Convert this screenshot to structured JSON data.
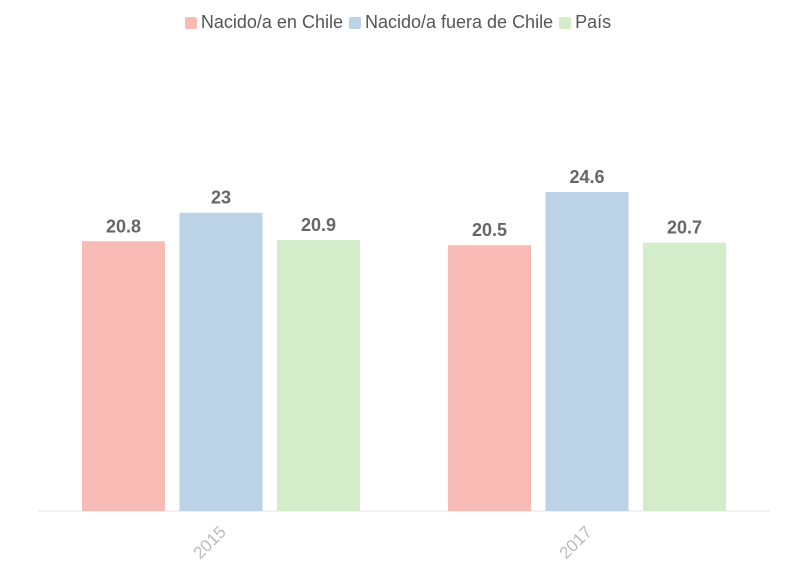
{
  "legend": {
    "items": [
      {
        "label": "Nacido/a en Chile",
        "color": "#f8bbb5"
      },
      {
        "label": "Nacido/a fuera de Chile",
        "color": "#bcd2e6"
      },
      {
        "label": "País",
        "color": "#d3edca"
      }
    ]
  },
  "chart_data": {
    "type": "bar",
    "categories": [
      "2015",
      "2017"
    ],
    "series": [
      {
        "name": "Nacido/a en Chile",
        "values": [
          20.8,
          20.5
        ],
        "color": "#f8bbb5"
      },
      {
        "name": "Nacido/a fuera de Chile",
        "values": [
          23,
          24.6
        ],
        "color": "#bcd2e6"
      },
      {
        "name": "País",
        "values": [
          20.9,
          20.7
        ],
        "color": "#d3edca"
      }
    ],
    "title": "",
    "xlabel": "",
    "ylabel": "",
    "ylim": [
      0,
      24.6
    ],
    "grid": false,
    "legend_position": "top-center"
  }
}
